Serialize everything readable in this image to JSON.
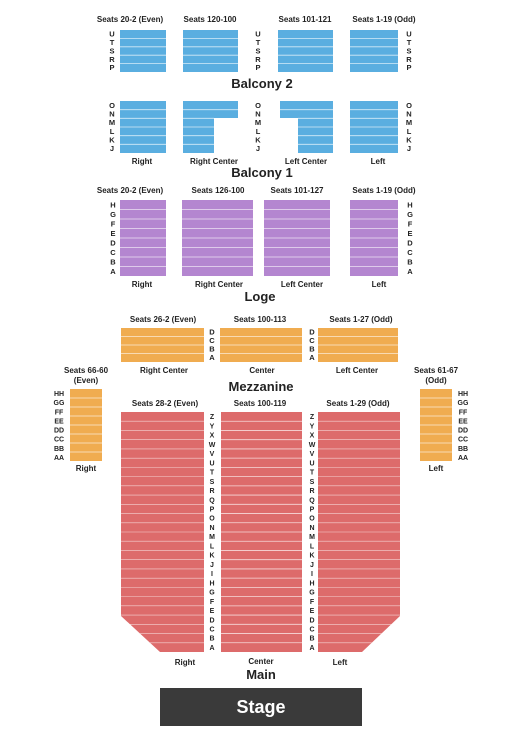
{
  "colors": {
    "balcony": "#5aaee0",
    "loge": "#b486d0",
    "mezzanine": "#f0ac50",
    "main": "#dd6b6b",
    "stage": "#3a3a3a"
  },
  "balcony2": {
    "title": "Balcony 2",
    "seat_labels": [
      "Seats 20-2 (Even)",
      "Seats 120-100",
      "Seats 101-121",
      "Seats 1-19 (Odd)"
    ],
    "rows": [
      "U",
      "T",
      "S",
      "R",
      "P"
    ]
  },
  "balcony1": {
    "title": "Balcony 1",
    "rows": [
      "O",
      "N",
      "M",
      "L",
      "K",
      "J"
    ],
    "section_labels": [
      "Right",
      "Right Center",
      "Left Center",
      "Left"
    ]
  },
  "loge": {
    "title": "Loge",
    "seat_labels": [
      "Seats 20-2 (Even)",
      "Seats 126-100",
      "Seats 101-127",
      "Seats 1-19 (Odd)"
    ],
    "rows": [
      "H",
      "G",
      "F",
      "E",
      "D",
      "C",
      "B",
      "A"
    ],
    "section_labels": [
      "Right",
      "Right Center",
      "Left Center",
      "Left"
    ]
  },
  "mezzanine": {
    "title": "Mezzanine",
    "seat_labels": [
      "Seats 26-2 (Even)",
      "Seats 100-113",
      "Seats 1-27 (Odd)"
    ],
    "rows": [
      "D",
      "C",
      "B",
      "A"
    ],
    "section_labels": [
      "Right Center",
      "Center",
      "Left Center"
    ]
  },
  "side_boxes": {
    "right": {
      "seat_label_line1": "Seats 66-60",
      "seat_label_line2": "(Even)",
      "section_label": "Right"
    },
    "left": {
      "seat_label_line1": "Seats 61-67",
      "seat_label_line2": "(Odd)",
      "section_label": "Left"
    },
    "rows": [
      "HH",
      "GG",
      "FF",
      "EE",
      "DD",
      "CC",
      "BB",
      "AA"
    ]
  },
  "main": {
    "title": "Main",
    "seat_labels": [
      "Seats 28-2 (Even)",
      "Seats 100-119",
      "Seats 1-29 (Odd)"
    ],
    "rows": [
      "Z",
      "Y",
      "X",
      "W",
      "V",
      "U",
      "T",
      "S",
      "R",
      "Q",
      "P",
      "O",
      "N",
      "M",
      "L",
      "K",
      "J",
      "I",
      "H",
      "G",
      "F",
      "E",
      "D",
      "C",
      "B",
      "A"
    ],
    "section_labels": [
      "Right",
      "Center",
      "Left"
    ]
  },
  "stage": {
    "label": "Stage"
  }
}
